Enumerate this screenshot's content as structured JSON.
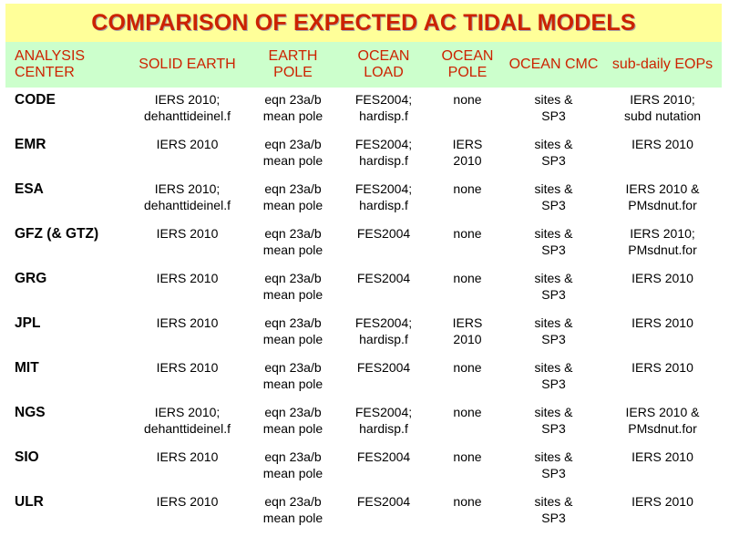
{
  "title": "COMPARISON OF EXPECTED AC TIDAL MODELS",
  "headers": [
    [
      "ANALYSIS",
      "CENTER"
    ],
    [
      "SOLID",
      "EARTH"
    ],
    [
      "EARTH",
      "POLE"
    ],
    [
      "OCEAN",
      "LOAD"
    ],
    [
      "OCEAN",
      "POLE"
    ],
    [
      "OCEAN",
      "CMC"
    ],
    [
      "sub-daily",
      "EOPs"
    ]
  ],
  "rows": [
    {
      "center": "CODE",
      "solid_earth": [
        "IERS 2010;",
        "dehanttideinel.f"
      ],
      "earth_pole": [
        "eqn 23a/b",
        "mean pole"
      ],
      "ocean_load": [
        "FES2004;",
        "hardisp.f"
      ],
      "ocean_pole": [
        "none"
      ],
      "ocean_cmc": [
        "sites &",
        "SP3"
      ],
      "eops": [
        "IERS 2010;",
        "subd nutation"
      ]
    },
    {
      "center": "EMR",
      "solid_earth": [
        "IERS 2010"
      ],
      "earth_pole": [
        "eqn 23a/b",
        "mean pole"
      ],
      "ocean_load": [
        "FES2004;",
        "hardisp.f"
      ],
      "ocean_pole": [
        "IERS",
        "2010"
      ],
      "ocean_cmc": [
        "sites &",
        "SP3"
      ],
      "eops": [
        "IERS 2010"
      ]
    },
    {
      "center": "ESA",
      "solid_earth": [
        "IERS 2010;",
        "dehanttideinel.f"
      ],
      "earth_pole": [
        "eqn 23a/b",
        "mean pole"
      ],
      "ocean_load": [
        "FES2004;",
        "hardisp.f"
      ],
      "ocean_pole": [
        "none"
      ],
      "ocean_cmc": [
        "sites &",
        "SP3"
      ],
      "eops": [
        "IERS 2010 &",
        "PMsdnut.for"
      ]
    },
    {
      "center": "GFZ (& GTZ)",
      "solid_earth": [
        "IERS 2010"
      ],
      "earth_pole": [
        "eqn 23a/b",
        "mean pole"
      ],
      "ocean_load": [
        "FES2004"
      ],
      "ocean_pole": [
        "none"
      ],
      "ocean_cmc": [
        "sites &",
        "SP3"
      ],
      "eops": [
        "IERS 2010;",
        "PMsdnut.for"
      ]
    },
    {
      "center": "GRG",
      "solid_earth": [
        "IERS 2010"
      ],
      "earth_pole": [
        "eqn 23a/b",
        "mean pole"
      ],
      "ocean_load": [
        "FES2004"
      ],
      "ocean_pole": [
        "none"
      ],
      "ocean_cmc": [
        "sites &",
        "SP3"
      ],
      "eops": [
        "IERS 2010"
      ]
    },
    {
      "center": "JPL",
      "solid_earth": [
        "IERS 2010"
      ],
      "earth_pole": [
        "eqn 23a/b",
        "mean pole"
      ],
      "ocean_load": [
        "FES2004;",
        "hardisp.f"
      ],
      "ocean_pole": [
        "IERS",
        "2010"
      ],
      "ocean_cmc": [
        "sites &",
        "SP3"
      ],
      "eops": [
        "IERS 2010"
      ]
    },
    {
      "center": "MIT",
      "solid_earth": [
        "IERS 2010"
      ],
      "earth_pole": [
        "eqn 23a/b",
        "mean pole"
      ],
      "ocean_load": [
        "FES2004"
      ],
      "ocean_pole": [
        "none"
      ],
      "ocean_cmc": [
        "sites &",
        "SP3"
      ],
      "eops": [
        "IERS 2010"
      ]
    },
    {
      "center": "NGS",
      "solid_earth": [
        "IERS 2010;",
        "dehanttideinel.f"
      ],
      "earth_pole": [
        "eqn 23a/b",
        "mean pole"
      ],
      "ocean_load": [
        "FES2004;",
        "hardisp.f"
      ],
      "ocean_pole": [
        "none"
      ],
      "ocean_cmc": [
        "sites &",
        "SP3"
      ],
      "eops": [
        "IERS 2010 &",
        "PMsdnut.for"
      ]
    },
    {
      "center": "SIO",
      "solid_earth": [
        "IERS 2010"
      ],
      "earth_pole": [
        "eqn 23a/b",
        "mean pole"
      ],
      "ocean_load": [
        "FES2004"
      ],
      "ocean_pole": [
        "none"
      ],
      "ocean_cmc": [
        "sites &",
        "SP3"
      ],
      "eops": [
        "IERS 2010"
      ]
    },
    {
      "center": "ULR",
      "solid_earth": [
        "IERS 2010"
      ],
      "earth_pole": [
        "eqn 23a/b",
        "mean pole"
      ],
      "ocean_load": [
        "FES2004"
      ],
      "ocean_pole": [
        "none"
      ],
      "ocean_cmc": [
        "sites &",
        "SP3"
      ],
      "eops": [
        "IERS 2010"
      ]
    }
  ],
  "colors": {
    "title_text": "#cc2200",
    "title_background": "#ffff99",
    "header_text": "#cc2200",
    "header_background": "#ccffcc"
  }
}
